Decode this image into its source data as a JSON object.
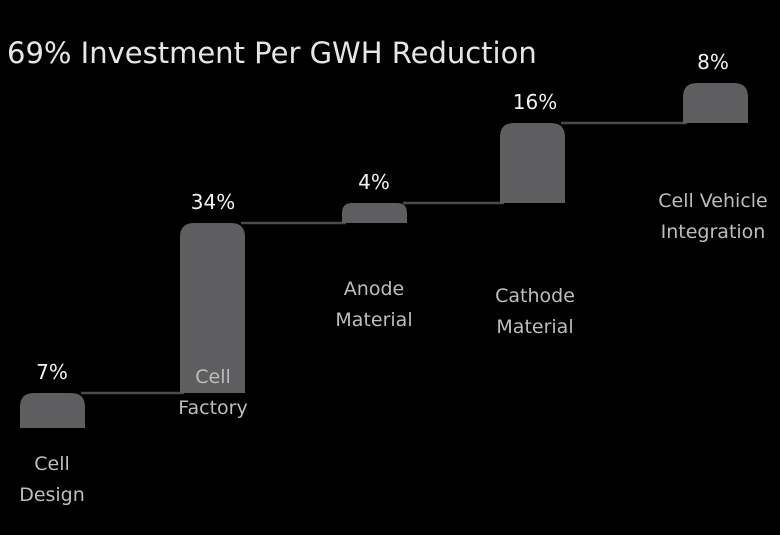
{
  "chart_data": {
    "type": "bar",
    "subtype": "waterfall",
    "title": "69% Investment Per GWH Reduction",
    "categories": [
      "Cell Design",
      "Cell Factory",
      "Anode Material",
      "Cathode Material",
      "Cell Vehicle Integration"
    ],
    "category_lines": [
      [
        "Cell",
        "Design"
      ],
      [
        "Cell",
        "Factory"
      ],
      [
        "Anode",
        "Material"
      ],
      [
        "Cathode",
        "Material"
      ],
      [
        "Cell Vehicle",
        "Integration"
      ]
    ],
    "values": [
      7,
      34,
      4,
      16,
      8
    ],
    "value_labels": [
      "7%",
      "34%",
      "4%",
      "16%",
      "8%"
    ],
    "total": 69,
    "unit": "%",
    "colors": {
      "bar": "#5e5e60",
      "connector": "#4a4a4a",
      "text": "#e6e6e6",
      "label": "#bdbdbd",
      "background": "#000000"
    }
  }
}
